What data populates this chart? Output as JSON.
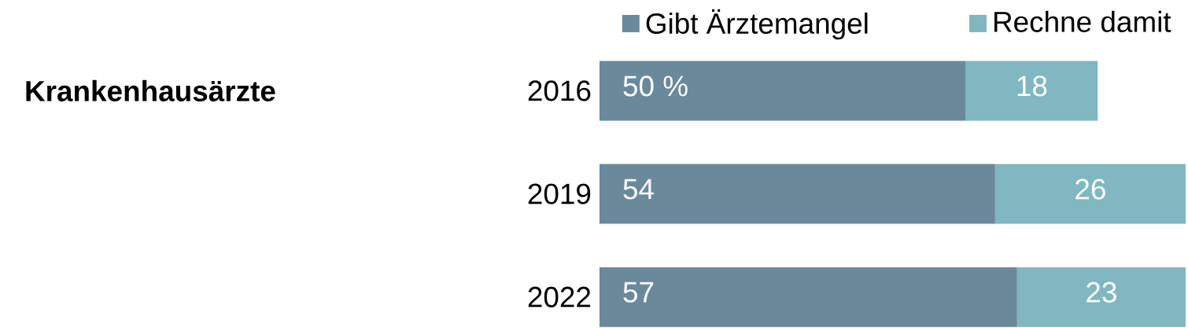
{
  "chart_data": {
    "type": "bar",
    "orientation": "horizontal",
    "stacked": true,
    "title": "Krankenhausärzte",
    "categories": [
      "2016",
      "2019",
      "2022"
    ],
    "series": [
      {
        "name": "Gibt Ärztemangel",
        "color": "#6a8a9c",
        "values": [
          50,
          54,
          57
        ],
        "value_labels": [
          "50 %",
          "54",
          "57"
        ]
      },
      {
        "name": "Rechne damit",
        "color": "#80b7c1",
        "values": [
          18,
          26,
          23
        ],
        "value_labels": [
          "18",
          "26",
          "23"
        ]
      }
    ],
    "legend": "top right",
    "tick_labels": "y"
  }
}
